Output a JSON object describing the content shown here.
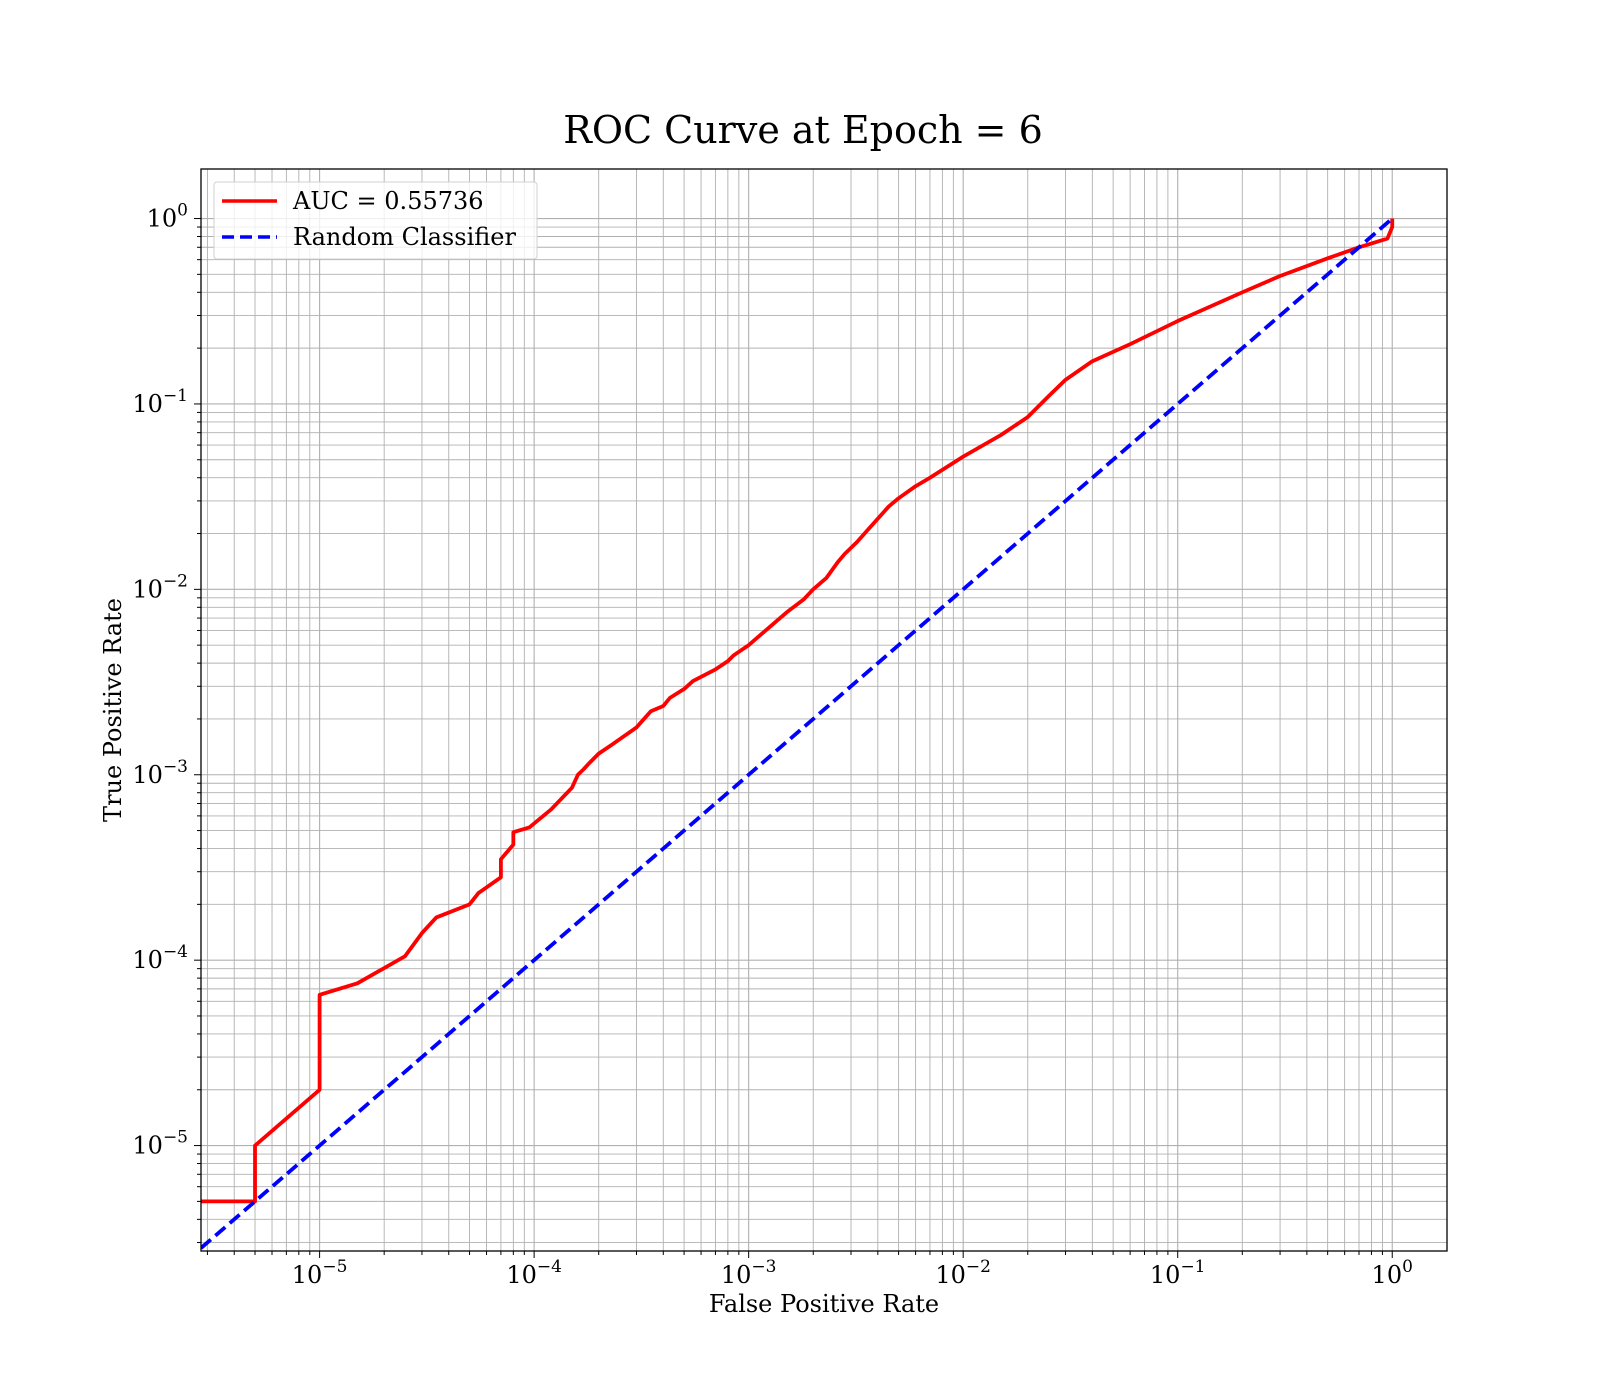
{
  "chart_data": {
    "type": "line",
    "title": "ROC Curve at Epoch = 6",
    "xlabel": "False Positive Rate",
    "ylabel": "True Positive Rate",
    "xscale": "log",
    "yscale": "log",
    "xlim": [
      2.8e-06,
      1.8
    ],
    "ylim": [
      2.7e-06,
      1.85
    ],
    "grid": "both major and minor",
    "legend_position": "top-left",
    "x_ticks": [
      {
        "value": 1e-05,
        "base": "10",
        "exp": "−5"
      },
      {
        "value": 0.0001,
        "base": "10",
        "exp": "−4"
      },
      {
        "value": 0.001,
        "base": "10",
        "exp": "−3"
      },
      {
        "value": 0.01,
        "base": "10",
        "exp": "−2"
      },
      {
        "value": 0.1,
        "base": "10",
        "exp": "−1"
      },
      {
        "value": 1,
        "base": "10",
        "exp": "0"
      }
    ],
    "y_ticks": [
      {
        "value": 1e-05,
        "base": "10",
        "exp": "−5"
      },
      {
        "value": 0.0001,
        "base": "10",
        "exp": "−4"
      },
      {
        "value": 0.001,
        "base": "10",
        "exp": "−3"
      },
      {
        "value": 0.01,
        "base": "10",
        "exp": "−2"
      },
      {
        "value": 0.1,
        "base": "10",
        "exp": "−1"
      },
      {
        "value": 1,
        "base": "10",
        "exp": "0"
      }
    ],
    "series": [
      {
        "name": "AUC = 0.55736",
        "color": "#ff0000",
        "style": "solid",
        "x": [
          2.8e-06,
          5e-06,
          5e-06,
          1e-05,
          1e-05,
          1.5e-05,
          2.5e-05,
          3e-05,
          3.5e-05,
          5e-05,
          5.5e-05,
          7e-05,
          7e-05,
          8e-05,
          8e-05,
          9.5e-05,
          0.00012,
          0.00015,
          0.00016,
          0.00017,
          0.00018,
          0.0002,
          0.00023,
          0.0003,
          0.00035,
          0.0004,
          0.00043,
          0.0005,
          0.00055,
          0.0007,
          0.0008,
          0.00085,
          0.001,
          0.0011,
          0.0013,
          0.0015,
          0.0018,
          0.002,
          0.0023,
          0.0026,
          0.0028,
          0.0032,
          0.0036,
          0.0045,
          0.005,
          0.006,
          0.007,
          0.01,
          0.015,
          0.02,
          0.025,
          0.03,
          0.04,
          0.06,
          0.1,
          0.2,
          0.3,
          0.5,
          0.7,
          0.95,
          1,
          1
        ],
        "y": [
          5e-06,
          5e-06,
          1e-05,
          2e-05,
          6.5e-05,
          7.5e-05,
          0.000105,
          0.00014,
          0.00017,
          0.0002,
          0.00023,
          0.00028,
          0.00035,
          0.00042,
          0.00049,
          0.00052,
          0.00065,
          0.00085,
          0.001,
          0.00107,
          0.00115,
          0.0013,
          0.00145,
          0.0018,
          0.0022,
          0.00235,
          0.0026,
          0.0029,
          0.0032,
          0.0037,
          0.0041,
          0.0044,
          0.005,
          0.0055,
          0.0065,
          0.0075,
          0.0088,
          0.01,
          0.0115,
          0.014,
          0.0155,
          0.018,
          0.021,
          0.028,
          0.031,
          0.036,
          0.04,
          0.052,
          0.068,
          0.085,
          0.11,
          0.135,
          0.17,
          0.21,
          0.28,
          0.4,
          0.49,
          0.61,
          0.7,
          0.78,
          0.9,
          1
        ]
      },
      {
        "name": "Random Classifier",
        "color": "#0000ff",
        "style": "dashed",
        "x": [
          2.8e-06,
          1
        ],
        "y": [
          2.8e-06,
          1
        ]
      }
    ]
  }
}
